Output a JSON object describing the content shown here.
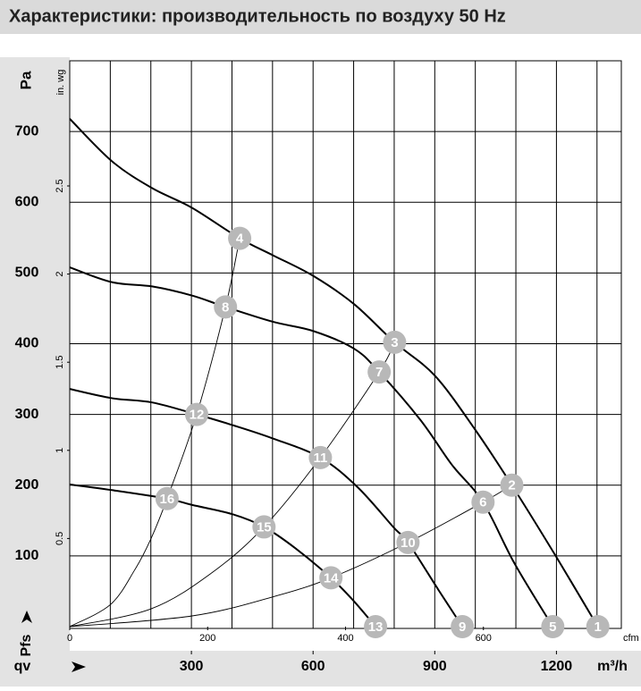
{
  "chart_data": {
    "type": "line",
    "title": "Характеристики: производительность по воздуху 50 Hz",
    "ylabel": "Pa",
    "ylabel_bottom": "Pfs",
    "y2label": "in. wg",
    "xlabel": "qv",
    "xunit": "m³/h",
    "x2label": "cfm",
    "xlim": [
      0,
      1360
    ],
    "xticks": [
      300,
      600,
      900,
      1200
    ],
    "xgrid": [
      100,
      200,
      300,
      400,
      500,
      600,
      700,
      800,
      900,
      1000,
      1100,
      1200,
      1300
    ],
    "x2lim": [
      0,
      800
    ],
    "x2ticks": [
      0,
      200,
      400,
      600
    ],
    "ylim": [
      0,
      800
    ],
    "yticks": [
      100,
      200,
      300,
      400,
      500,
      600,
      700
    ],
    "y2lim": [
      0,
      3.21
    ],
    "y2ticks": [
      0.5,
      1,
      1.5,
      2,
      2.5
    ],
    "grid": true,
    "color": "#000000",
    "curves": [
      {
        "x": [
          0,
          104,
          203,
          302,
          419,
          501,
          600,
          701,
          801,
          900,
          999,
          1090,
          1196,
          1302
        ],
        "values": [
          718,
          658,
          620,
          592,
          549,
          525,
          496,
          456,
          402,
          355,
          279,
          200,
          102,
          0
        ]
      },
      {
        "x": [
          0,
          104,
          203,
          302,
          384,
          501,
          600,
          701,
          763,
          865,
          942,
          1019,
          1096,
          1191
        ],
        "values": [
          508,
          487,
          481,
          468,
          452,
          431,
          418,
          393,
          360,
          292,
          229,
          176,
          90,
          0
        ]
      },
      {
        "x": [
          0,
          104,
          203,
          313,
          401,
          501,
          618,
          710,
          799,
          834,
          909,
          968
        ],
        "values": [
          336,
          323,
          317,
          300,
          285,
          266,
          239,
          197,
          140,
          119,
          52,
          0
        ]
      },
      {
        "x": [
          0,
          104,
          240,
          302,
          401,
          479,
          556,
          644,
          699,
          754
        ],
        "values": [
          201,
          193,
          181,
          172,
          159,
          141,
          111,
          69,
          37,
          0
        ]
      }
    ],
    "system_curves": [
      {
        "x": [
          0,
          100,
          160,
          200,
          240,
          313,
          384,
          419
        ],
        "values": [
          0,
          31,
          80,
          124,
          181,
          300,
          452,
          549
        ]
      },
      {
        "x": [
          0,
          200,
          350,
          479,
          618,
          763,
          801
        ],
        "values": [
          0,
          25,
          76,
          141,
          239,
          360,
          402
        ]
      },
      {
        "x": [
          0,
          300,
          500,
          644,
          834,
          1019,
          1090
        ],
        "values": [
          0,
          15,
          42,
          69,
          119,
          176,
          200
        ]
      }
    ],
    "markers": [
      {
        "label": "1",
        "x": 1302,
        "y": 0
      },
      {
        "label": "2",
        "x": 1090,
        "y": 200
      },
      {
        "label": "3",
        "x": 801,
        "y": 402
      },
      {
        "label": "4",
        "x": 419,
        "y": 549
      },
      {
        "label": "5",
        "x": 1191,
        "y": 0
      },
      {
        "label": "6",
        "x": 1019,
        "y": 176
      },
      {
        "label": "7",
        "x": 763,
        "y": 360
      },
      {
        "label": "8",
        "x": 384,
        "y": 452
      },
      {
        "label": "9",
        "x": 968,
        "y": 0
      },
      {
        "label": "10",
        "x": 834,
        "y": 119
      },
      {
        "label": "11",
        "x": 618,
        "y": 239
      },
      {
        "label": "12",
        "x": 313,
        "y": 300
      },
      {
        "label": "13",
        "x": 754,
        "y": 0
      },
      {
        "label": "14",
        "x": 644,
        "y": 69
      },
      {
        "label": "15",
        "x": 479,
        "y": 141
      },
      {
        "label": "16",
        "x": 240,
        "y": 181
      }
    ]
  }
}
